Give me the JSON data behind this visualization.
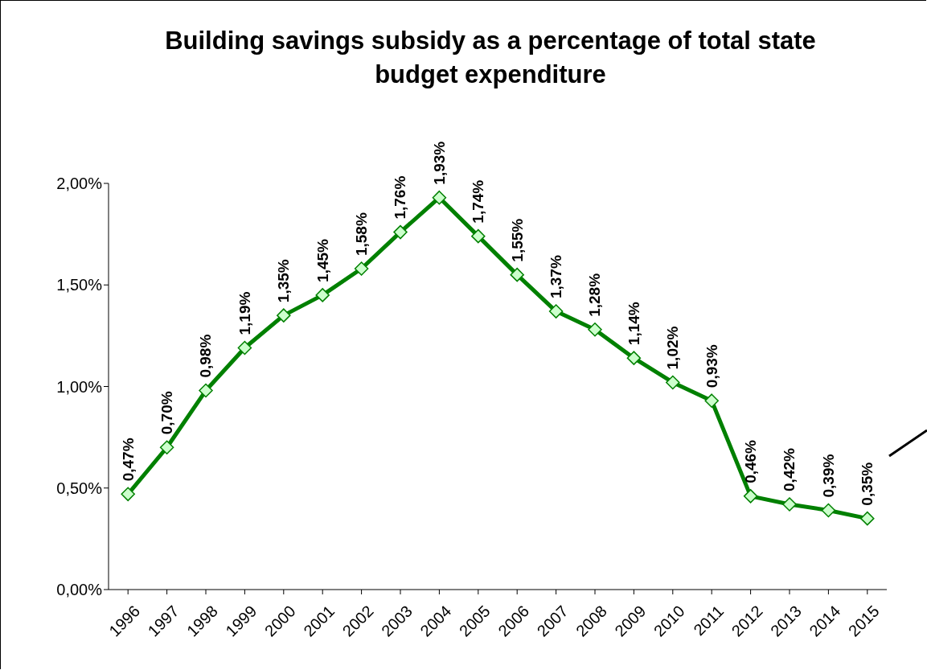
{
  "chart_data": {
    "type": "line",
    "title": "Building savings subsidy as a percentage of total state budget expenditure",
    "categories": [
      "1996",
      "1997",
      "1998",
      "1999",
      "2000",
      "2001",
      "2002",
      "2003",
      "2004",
      "2005",
      "2006",
      "2007",
      "2008",
      "2009",
      "2010",
      "2011",
      "2012",
      "2013",
      "2014",
      "2015"
    ],
    "series": [
      {
        "color": "#008000",
        "values": [
          0.47,
          0.7,
          0.98,
          1.19,
          1.35,
          1.45,
          1.58,
          1.76,
          1.93,
          1.74,
          1.55,
          1.37,
          1.28,
          1.14,
          1.02,
          0.93,
          0.46,
          0.42,
          0.39,
          0.35
        ],
        "value_labels": [
          "0,47%",
          "0,70%",
          "0,98%",
          "1,19%",
          "1,35%",
          "1,45%",
          "1,58%",
          "1,76%",
          "1,93%",
          "1,74%",
          "1,55%",
          "1,37%",
          "1,28%",
          "1,14%",
          "1,02%",
          "0,93%",
          "0,46%",
          "0,42%",
          "0,39%",
          "0,35%"
        ]
      }
    ],
    "ylim": [
      0,
      2
    ],
    "yticks": [
      {
        "value": 0,
        "label": "0,00%"
      },
      {
        "value": 0.5,
        "label": "0,50%"
      },
      {
        "value": 1,
        "label": "1,00%"
      },
      {
        "value": 1.5,
        "label": "1,50%"
      },
      {
        "value": 2,
        "label": "2,00%"
      }
    ],
    "marker": "diamond",
    "line_style": "solid",
    "grid": false
  }
}
